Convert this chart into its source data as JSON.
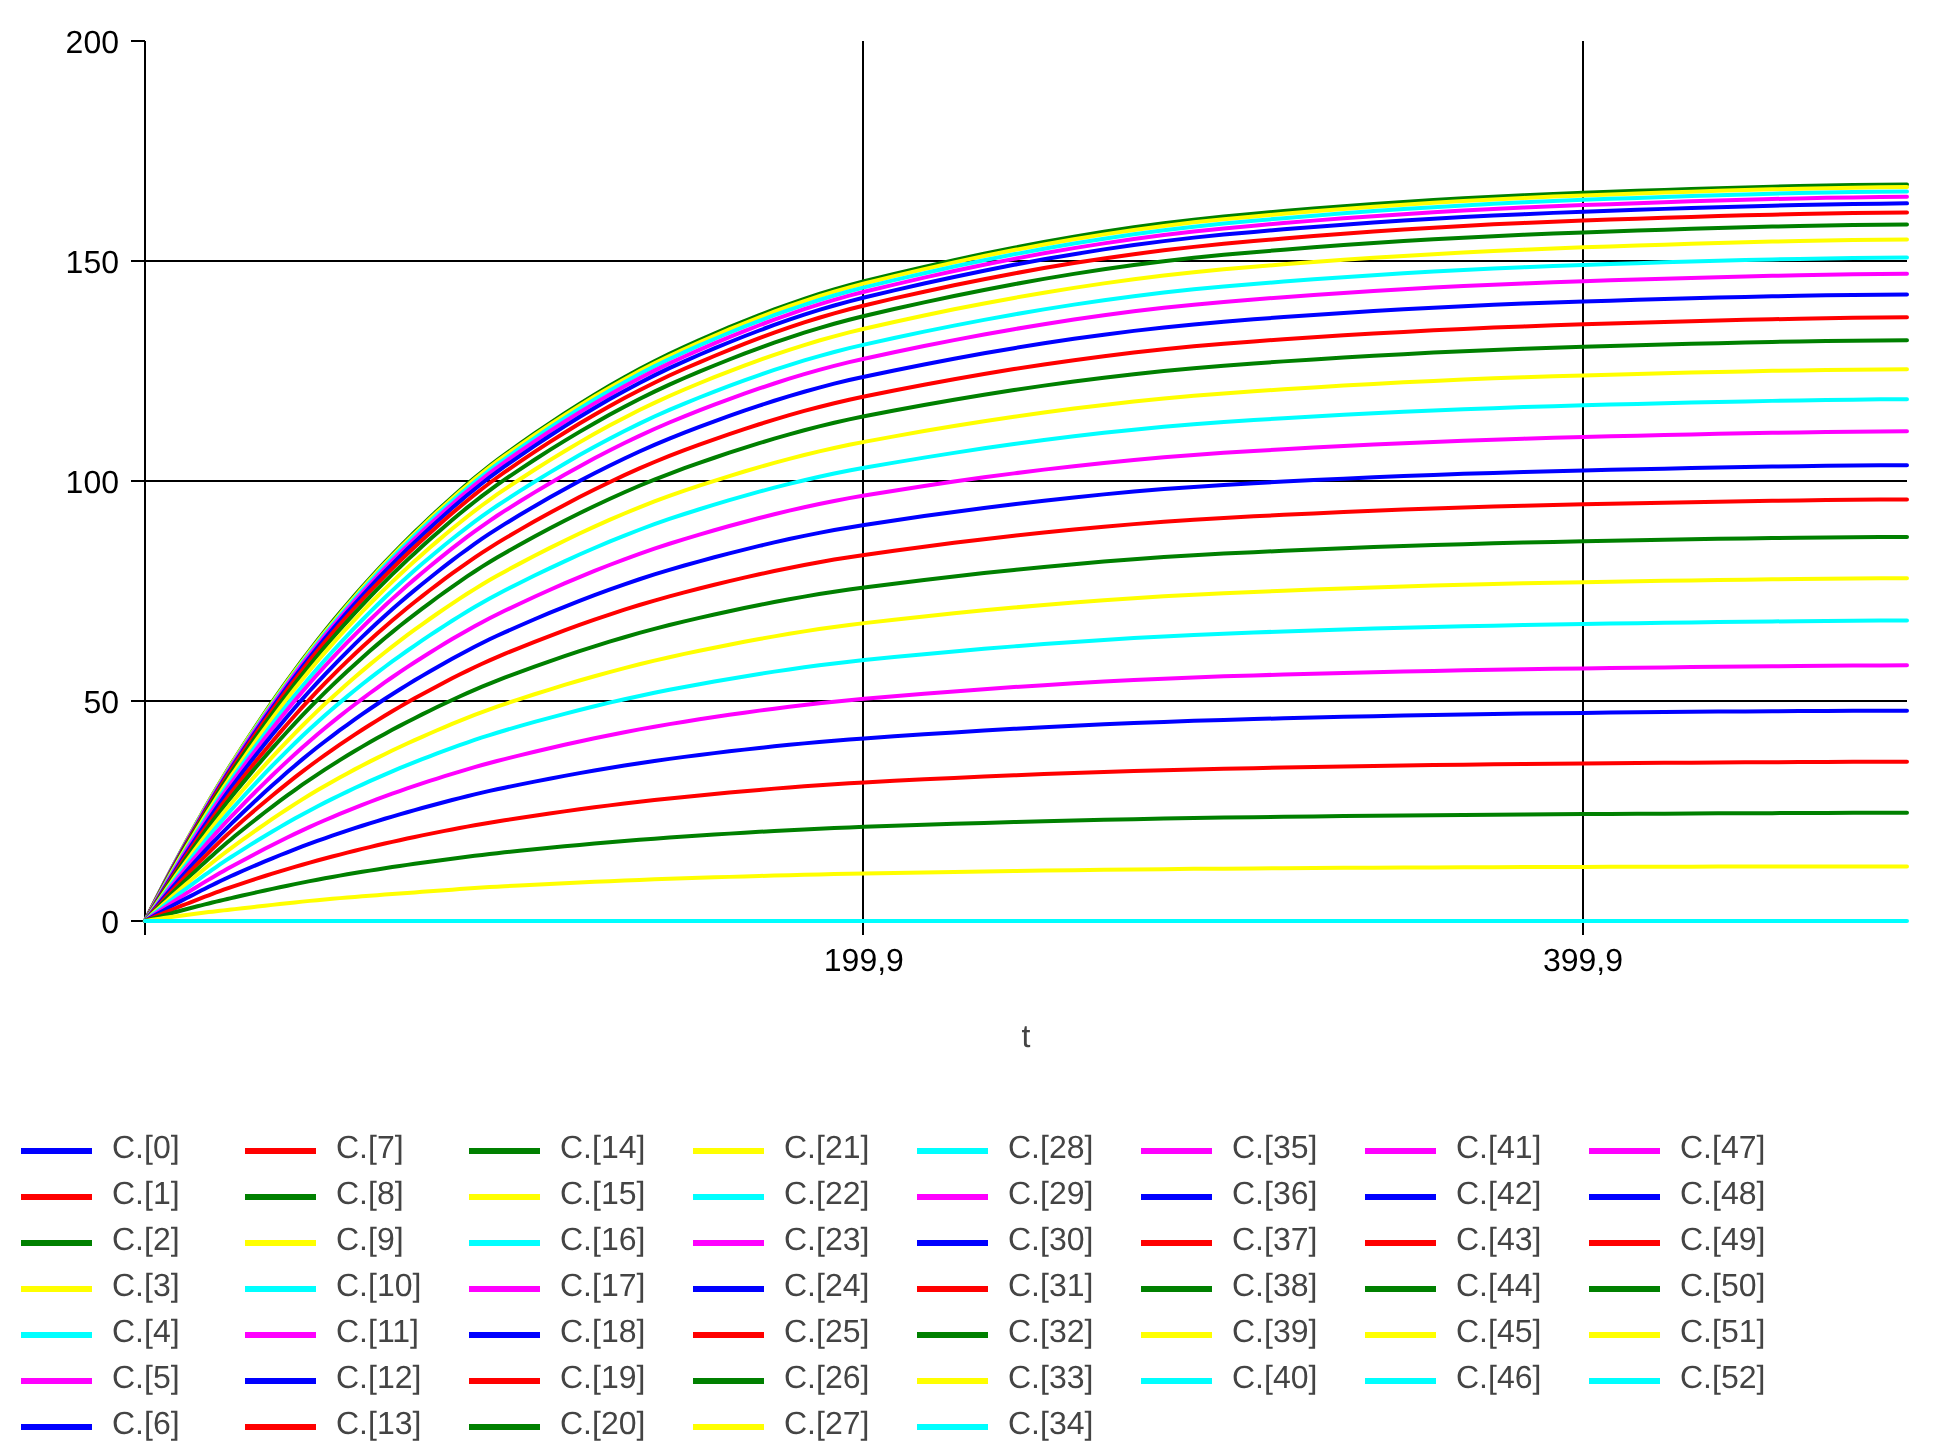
{
  "chart_data": {
    "type": "line",
    "xlabel": "t",
    "x": [
      0,
      12.5,
      25,
      50,
      75,
      100,
      150,
      200,
      300,
      400,
      490
    ],
    "xlim": [
      0,
      490
    ],
    "xticks": [
      {
        "value": 0,
        "label": null
      },
      {
        "value": 199.9,
        "label": "199,9"
      },
      {
        "value": 399.9,
        "label": "399,9"
      }
    ],
    "ylim": [
      0,
      200
    ],
    "yticks": [
      0,
      50,
      100,
      150,
      200
    ],
    "grid": true,
    "legend": "bottom",
    "series": [
      {
        "name": "C.[0]",
        "color": "#0000ff",
        "values": [
          null,
          null,
          null,
          null,
          null,
          null,
          null,
          null,
          null,
          null,
          null
        ]
      },
      {
        "name": "C.[1]",
        "color": "#ff0000",
        "values": [
          null,
          null,
          null,
          null,
          null,
          null,
          null,
          null,
          null,
          null,
          null
        ]
      },
      {
        "name": "C.[2]",
        "color": "#008000",
        "values": [
          null,
          null,
          null,
          null,
          null,
          null,
          null,
          null,
          null,
          null,
          null
        ]
      },
      {
        "name": "C.[3]",
        "color": "#ffff00",
        "values": [
          null,
          null,
          null,
          null,
          null,
          null,
          null,
          null,
          null,
          null,
          null
        ]
      },
      {
        "name": "C.[4]",
        "color": "#00ffff",
        "values": [
          null,
          null,
          null,
          null,
          null,
          null,
          null,
          null,
          null,
          null,
          null
        ]
      },
      {
        "name": "C.[5]",
        "color": "#ff00ff",
        "values": [
          null,
          null,
          null,
          null,
          null,
          null,
          null,
          null,
          null,
          null,
          null
        ]
      },
      {
        "name": "C.[6]",
        "color": "#0000ff",
        "values": [
          null,
          null,
          null,
          null,
          null,
          null,
          null,
          null,
          null,
          null,
          null
        ]
      },
      {
        "name": "C.[7]",
        "color": "#ff0000",
        "values": [
          null,
          null,
          null,
          null,
          null,
          null,
          null,
          null,
          null,
          null,
          null
        ]
      },
      {
        "name": "C.[8]",
        "color": "#008000",
        "values": [
          null,
          null,
          null,
          null,
          null,
          null,
          null,
          null,
          null,
          null,
          null
        ]
      },
      {
        "name": "C.[9]",
        "color": "#ffff00",
        "values": [
          null,
          null,
          null,
          null,
          null,
          null,
          null,
          null,
          null,
          null,
          null
        ]
      },
      {
        "name": "C.[10]",
        "color": "#00ffff",
        "values": [
          null,
          null,
          null,
          null,
          null,
          null,
          null,
          null,
          null,
          null,
          null
        ]
      },
      {
        "name": "C.[11]",
        "color": "#ff00ff",
        "values": [
          null,
          null,
          null,
          null,
          null,
          null,
          null,
          null,
          null,
          null,
          null
        ]
      },
      {
        "name": "C.[12]",
        "color": "#0000ff",
        "values": [
          null,
          null,
          null,
          null,
          null,
          null,
          null,
          null,
          null,
          null,
          null
        ]
      },
      {
        "name": "C.[13]",
        "color": "#ff0000",
        "values": [
          null,
          null,
          null,
          null,
          null,
          null,
          null,
          null,
          null,
          null,
          null
        ]
      },
      {
        "name": "C.[14]",
        "color": "#008000",
        "values": [
          null,
          null,
          null,
          null,
          null,
          null,
          null,
          null,
          null,
          null,
          null
        ]
      },
      {
        "name": "C.[15]",
        "color": "#ffff00",
        "values": [
          null,
          null,
          null,
          null,
          null,
          null,
          null,
          null,
          null,
          null,
          null
        ]
      },
      {
        "name": "C.[16]",
        "color": "#00ffff",
        "values": [
          null,
          null,
          null,
          null,
          null,
          null,
          null,
          null,
          null,
          null,
          null
        ]
      },
      {
        "name": "C.[17]",
        "color": "#ff00ff",
        "values": [
          null,
          null,
          null,
          null,
          null,
          null,
          null,
          null,
          null,
          null,
          null
        ]
      },
      {
        "name": "C.[18]",
        "color": "#0000ff",
        "values": [
          null,
          null,
          null,
          null,
          null,
          null,
          null,
          null,
          null,
          null,
          null
        ]
      },
      {
        "name": "C.[19]",
        "color": "#ff0000",
        "values": [
          null,
          null,
          null,
          null,
          null,
          null,
          null,
          null,
          null,
          null,
          null
        ]
      },
      {
        "name": "C.[20]",
        "color": "#008000",
        "values": [
          null,
          null,
          null,
          null,
          null,
          null,
          null,
          null,
          null,
          null,
          null
        ]
      },
      {
        "name": "C.[21]",
        "color": "#ffff00",
        "values": [
          null,
          null,
          null,
          null,
          null,
          null,
          null,
          null,
          null,
          null,
          null
        ]
      },
      {
        "name": "C.[22]",
        "color": "#00ffff",
        "values": [
          null,
          null,
          null,
          null,
          null,
          null,
          null,
          null,
          null,
          null,
          null
        ]
      },
      {
        "name": "C.[23]",
        "color": "#ff00ff",
        "values": [
          null,
          null,
          null,
          null,
          null,
          null,
          null,
          null,
          null,
          null,
          null
        ]
      },
      {
        "name": "C.[24]",
        "color": "#0000ff",
        "values": [
          null,
          null,
          null,
          null,
          null,
          null,
          null,
          null,
          null,
          null,
          null
        ]
      },
      {
        "name": "C.[25]",
        "color": "#ff0000",
        "values": [
          null,
          null,
          null,
          null,
          null,
          null,
          null,
          null,
          null,
          null,
          null
        ]
      },
      {
        "name": "C.[26]",
        "color": "#008000",
        "values": [
          0,
          19.6,
          37.0,
          65.9,
          88.4,
          106.0,
          130.5,
          145.4,
          160.1,
          165.5,
          167.4
        ]
      },
      {
        "name": "C.[27]",
        "color": "#ffff00",
        "values": [
          0,
          19.6,
          36.9,
          65.6,
          88.1,
          105.7,
          130.0,
          144.9,
          159.5,
          164.9,
          166.8
        ]
      },
      {
        "name": "C.[28]",
        "color": "#00ffff",
        "values": [
          0,
          19.4,
          36.6,
          65.2,
          87.6,
          105.0,
          129.3,
          144.0,
          158.5,
          163.9,
          165.8
        ]
      },
      {
        "name": "C.[29]",
        "color": "#ff00ff",
        "values": [
          0,
          19.3,
          36.4,
          64.8,
          86.9,
          104.3,
          128.3,
          143.0,
          157.4,
          162.7,
          164.6
        ]
      },
      {
        "name": "C.[30]",
        "color": "#0000ff",
        "values": [
          0,
          19.1,
          36.0,
          64.2,
          86.1,
          103.3,
          127.2,
          141.7,
          156.0,
          161.2,
          163.1
        ]
      },
      {
        "name": "C.[31]",
        "color": "#ff0000",
        "values": [
          0,
          18.9,
          35.6,
          63.4,
          85.0,
          102.0,
          125.5,
          139.9,
          153.9,
          159.2,
          161.0
        ]
      },
      {
        "name": "C.[32]",
        "color": "#008000",
        "values": [
          0,
          18.6,
          35.0,
          62.3,
          83.6,
          100.3,
          123.4,
          137.5,
          151.4,
          156.5,
          158.3
        ]
      },
      {
        "name": "C.[33]",
        "color": "#ffff00",
        "values": [
          0,
          18.2,
          34.2,
          61.0,
          81.8,
          98.1,
          120.8,
          134.6,
          148.1,
          153.1,
          154.9
        ]
      },
      {
        "name": "C.[34]",
        "color": "#00ffff",
        "values": [
          0,
          17.7,
          33.3,
          59.3,
          79.7,
          95.5,
          117.6,
          131.0,
          144.2,
          149.1,
          150.8
        ]
      },
      {
        "name": "C.[35]",
        "color": "#ff00ff",
        "values": [
          0,
          17.3,
          32.5,
          57.9,
          77.7,
          93.2,
          114.7,
          127.8,
          140.7,
          145.4,
          147.1
        ]
      },
      {
        "name": "C.[36]",
        "color": "#0000ff",
        "values": [
          0,
          16.7,
          31.5,
          56.0,
          75.2,
          90.2,
          111.0,
          123.7,
          136.2,
          140.8,
          142.4
        ]
      },
      {
        "name": "C.[37]",
        "color": "#ff0000",
        "values": [
          0,
          16.1,
          30.3,
          54.0,
          72.5,
          86.9,
          107.0,
          119.2,
          131.2,
          135.6,
          137.2
        ]
      },
      {
        "name": "C.[38]",
        "color": "#008000",
        "values": [
          0,
          15.5,
          29.2,
          51.9,
          69.7,
          83.6,
          102.9,
          114.7,
          126.2,
          130.5,
          132.0
        ]
      },
      {
        "name": "C.[39]",
        "color": "#ffff00",
        "values": [
          0,
          14.7,
          27.7,
          49.3,
          66.2,
          79.4,
          97.8,
          108.9,
          119.9,
          124.0,
          125.4
        ]
      },
      {
        "name": "C.[40]",
        "color": "#00ffff",
        "values": [
          0,
          13.9,
          26.2,
          46.7,
          62.6,
          75.1,
          92.5,
          103.0,
          113.4,
          117.2,
          118.6
        ]
      },
      {
        "name": "C.[41]",
        "color": "#ff00ff",
        "values": [
          0,
          13.1,
          24.6,
          43.8,
          58.8,
          70.5,
          86.8,
          96.7,
          106.4,
          110.0,
          111.3
        ]
      },
      {
        "name": "C.[42]",
        "color": "#0000ff",
        "values": [
          0,
          12.2,
          22.9,
          40.8,
          54.7,
          65.6,
          80.8,
          90.0,
          99.1,
          102.4,
          103.6
        ]
      },
      {
        "name": "C.[43]",
        "color": "#ff0000",
        "values": [
          0,
          11.2,
          21.2,
          37.7,
          50.6,
          60.7,
          74.7,
          83.2,
          91.6,
          94.7,
          95.8
        ]
      },
      {
        "name": "C.[44]",
        "color": "#008000",
        "values": [
          0,
          10.2,
          19.3,
          34.4,
          46.1,
          55.3,
          68.1,
          75.8,
          83.5,
          86.3,
          87.3
        ]
      },
      {
        "name": "C.[45]",
        "color": "#ffff00",
        "values": [
          0,
          9.1,
          17.2,
          30.7,
          41.1,
          49.3,
          60.7,
          67.7,
          74.5,
          77.0,
          77.9
        ]
      },
      {
        "name": "C.[46]",
        "color": "#00ffff",
        "values": [
          0,
          8.0,
          15.1,
          26.9,
          36.1,
          43.3,
          53.2,
          59.3,
          65.3,
          67.5,
          68.3
        ]
      },
      {
        "name": "C.[47]",
        "color": "#ff00ff",
        "values": [
          0,
          6.8,
          12.8,
          22.9,
          30.7,
          36.8,
          45.3,
          50.5,
          55.6,
          57.4,
          58.1
        ]
      },
      {
        "name": "C.[48]",
        "color": "#0000ff",
        "values": [
          0,
          5.6,
          10.6,
          18.8,
          25.2,
          30.3,
          37.3,
          41.5,
          45.7,
          47.3,
          47.8
        ]
      },
      {
        "name": "C.[49]",
        "color": "#ff0000",
        "values": [
          0,
          4.2,
          8.0,
          14.2,
          19.1,
          22.9,
          28.2,
          31.5,
          34.6,
          35.8,
          36.2
        ]
      },
      {
        "name": "C.[50]",
        "color": "#008000",
        "values": [
          0,
          2.9,
          5.4,
          9.7,
          13.0,
          15.6,
          19.2,
          21.4,
          23.5,
          24.3,
          24.6
        ]
      },
      {
        "name": "C.[51]",
        "color": "#ffff00",
        "values": [
          0,
          1.5,
          2.7,
          4.9,
          6.5,
          7.9,
          9.7,
          10.8,
          11.9,
          12.3,
          12.4
        ]
      },
      {
        "name": "C.[52]",
        "color": "#00ffff",
        "values": [
          0,
          0,
          0,
          0,
          0,
          0,
          0,
          0,
          0,
          0,
          0
        ]
      }
    ]
  }
}
